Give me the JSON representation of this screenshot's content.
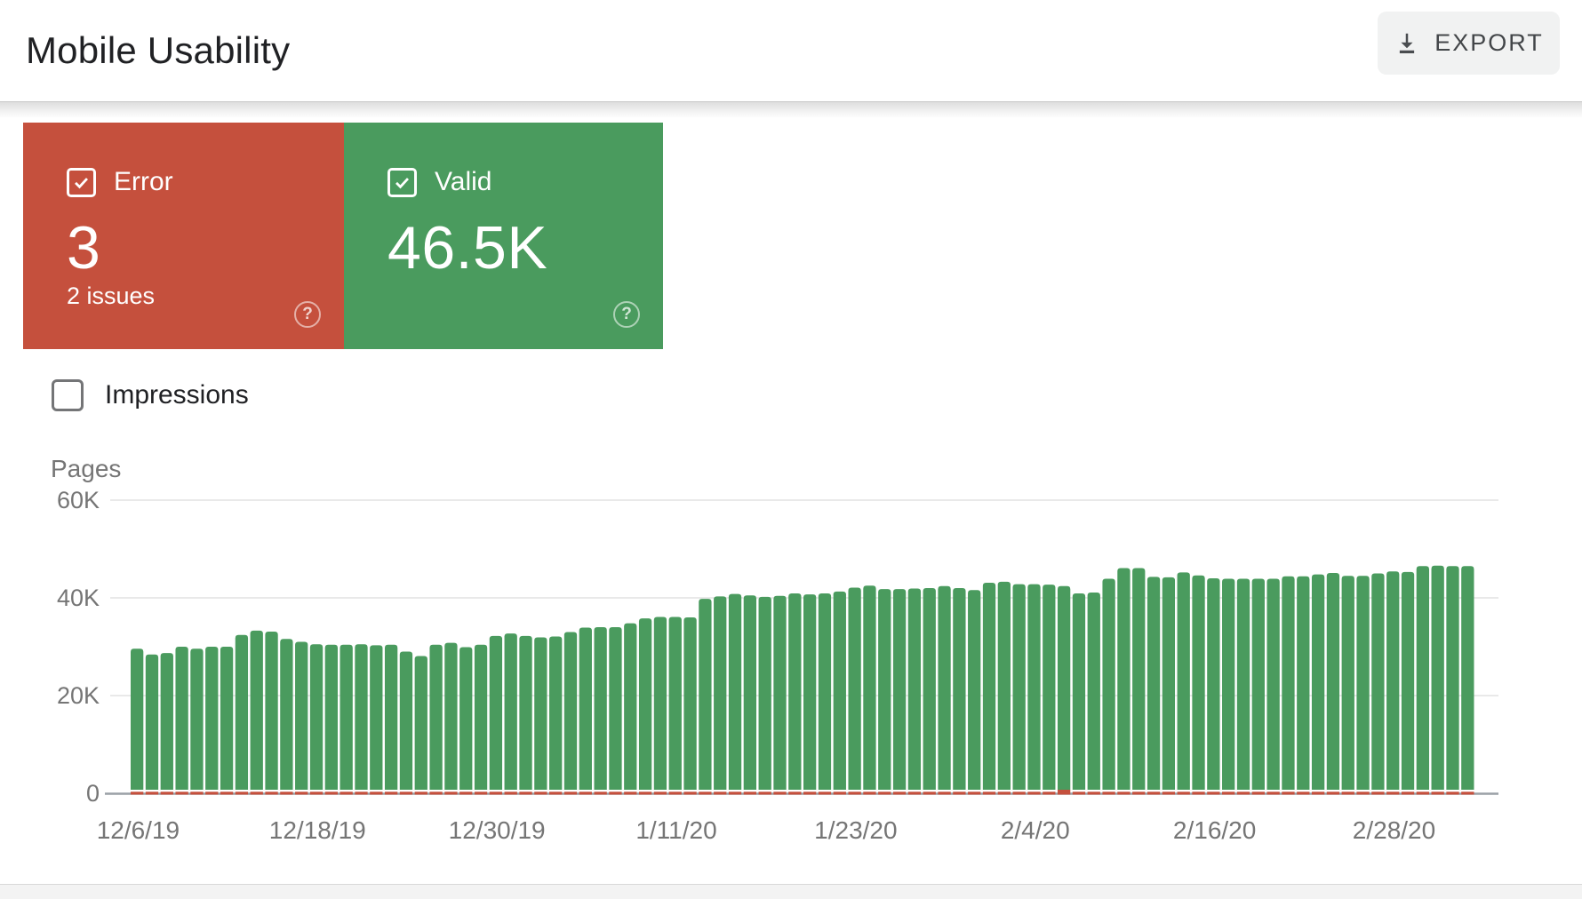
{
  "header": {
    "title": "Mobile Usability",
    "export_label": "EXPORT"
  },
  "summary_cards": {
    "error": {
      "label": "Error",
      "value": "3",
      "sub_label": "2 issues",
      "color": "#C5503D",
      "checked": true
    },
    "valid": {
      "label": "Valid",
      "value": "46.5K",
      "color": "#4A9B5E",
      "checked": true
    }
  },
  "controls": {
    "impressions_label": "Impressions",
    "impressions_checked": false
  },
  "chart_data": {
    "type": "bar",
    "title": "",
    "ylabel": "Pages",
    "xlabel": "",
    "ylim": [
      0,
      60000
    ],
    "grid": true,
    "legend_position": "none",
    "y_tick_labels": [
      "60K",
      "40K",
      "20K",
      "0"
    ],
    "y_tick_values": [
      60000,
      40000,
      20000,
      0
    ],
    "x_tick_labels": [
      "12/6/19",
      "12/18/19",
      "12/30/19",
      "1/11/20",
      "1/23/20",
      "2/4/20",
      "2/16/20",
      "2/28/20"
    ],
    "x_tick_bar_indices": [
      0,
      12,
      24,
      36,
      48,
      60,
      72,
      84
    ],
    "start_date": "12/6/19",
    "series": [
      {
        "name": "Valid",
        "color": "#4A9B5E",
        "values": [
          29600,
          28400,
          28700,
          30000,
          29600,
          30000,
          30000,
          32400,
          33300,
          33100,
          31600,
          31000,
          30500,
          30400,
          30400,
          30500,
          30300,
          30400,
          29000,
          28100,
          30400,
          30800,
          29900,
          30400,
          32200,
          32700,
          32200,
          31900,
          32100,
          33000,
          33900,
          34000,
          34000,
          34800,
          35800,
          36100,
          36100,
          36000,
          39800,
          40300,
          40800,
          40500,
          40200,
          40400,
          40900,
          40700,
          40900,
          41300,
          42100,
          42500,
          41800,
          41800,
          41900,
          42000,
          42400,
          42000,
          41600,
          43100,
          43300,
          42800,
          42800,
          42700,
          42400,
          40900,
          41100,
          43900,
          46100,
          46100,
          44300,
          44200,
          45200,
          44600,
          44000,
          43900,
          43900,
          43900,
          43900,
          44400,
          44400,
          44800,
          45100,
          44500,
          44500,
          45000,
          45400,
          45300,
          46500,
          46600,
          46500,
          46500
        ]
      },
      {
        "name": "Error",
        "color": "#C5503D",
        "values": [
          3,
          3,
          3,
          3,
          3,
          3,
          3,
          3,
          3,
          3,
          3,
          3,
          3,
          3,
          3,
          3,
          3,
          3,
          3,
          3,
          3,
          3,
          3,
          3,
          3,
          3,
          3,
          3,
          3,
          3,
          3,
          3,
          3,
          3,
          3,
          3,
          3,
          3,
          3,
          3,
          3,
          3,
          3,
          3,
          3,
          3,
          3,
          3,
          3,
          3,
          3,
          3,
          3,
          3,
          3,
          3,
          3,
          3,
          3,
          3,
          3,
          3,
          1000,
          3,
          3,
          3,
          3,
          3,
          3,
          3,
          3,
          3,
          3,
          3,
          3,
          3,
          3,
          3,
          3,
          3,
          3,
          3,
          3,
          3,
          3,
          3,
          3,
          3,
          3,
          3
        ]
      }
    ]
  }
}
